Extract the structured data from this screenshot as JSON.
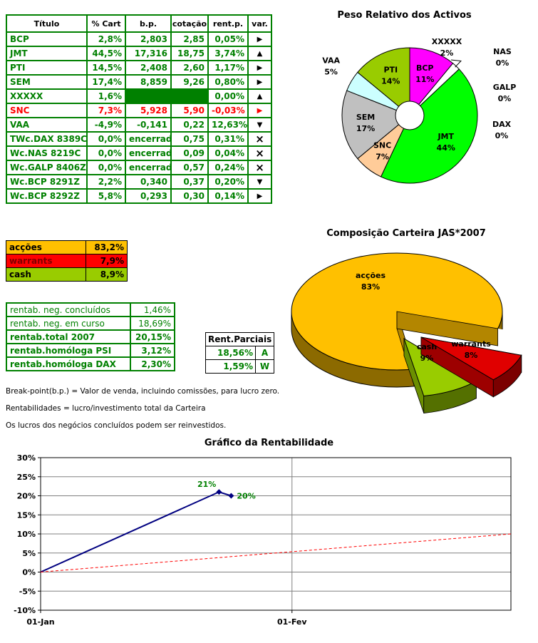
{
  "portfolio_table": {
    "headers": [
      "Título",
      "% Cart",
      "b.p.",
      "cotação",
      "rent.p.",
      "var."
    ],
    "rows": [
      {
        "titulo": "BCP",
        "cart": "2,8%",
        "bp": "2,803",
        "cot": "2,85",
        "rentp": "0,05%",
        "var": "right",
        "tone": "green"
      },
      {
        "titulo": "JMT",
        "cart": "44,5%",
        "bp": "17,316",
        "cot": "18,75",
        "rentp": "3,74%",
        "var": "up",
        "tone": "green"
      },
      {
        "titulo": "PTI",
        "cart": "14,5%",
        "bp": "2,408",
        "cot": "2,60",
        "rentp": "1,17%",
        "var": "right",
        "tone": "green"
      },
      {
        "titulo": "SEM",
        "cart": "17,4%",
        "bp": "8,859",
        "cot": "9,26",
        "rentp": "0,80%",
        "var": "right",
        "tone": "green"
      },
      {
        "titulo": "XXXXX",
        "cart": "1,6%",
        "bp": "",
        "cot": "",
        "rentp": "0,00%",
        "var": "up",
        "tone": "green",
        "filled": true
      },
      {
        "titulo": "SNC",
        "cart": "7,3%",
        "bp": "5,928",
        "cot": "5,90",
        "rentp": "-0,03%",
        "var": "right",
        "tone": "red"
      },
      {
        "titulo": "VAA",
        "cart": "-4,9%",
        "bp": "-0,141",
        "cot": "0,22",
        "rentp": "12,63%",
        "var": "down",
        "tone": "green"
      },
      {
        "titulo": "TWc.DAX 8389C",
        "cart": "0,0%",
        "bp": "encerrado",
        "cot": "0,75",
        "rentp": "0,31%",
        "var": "x",
        "tone": "green"
      },
      {
        "titulo": "Wc.NAS 8219C",
        "cart": "0,0%",
        "bp": "encerrado",
        "cot": "0,09",
        "rentp": "0,04%",
        "var": "x",
        "tone": "green"
      },
      {
        "titulo": "Wc.GALP 8406Z",
        "cart": "0,0%",
        "bp": "encerrado",
        "cot": "0,57",
        "rentp": "0,24%",
        "var": "x",
        "tone": "green"
      },
      {
        "titulo": "Wc.BCP 8291Z",
        "cart": "2,2%",
        "bp": "0,340",
        "cot": "0,37",
        "rentp": "0,20%",
        "var": "down",
        "tone": "green"
      },
      {
        "titulo": "Wc.BCP 8292Z",
        "cart": "5,8%",
        "bp": "0,293",
        "cot": "0,30",
        "rentp": "0,14%",
        "var": "right",
        "tone": "green"
      }
    ]
  },
  "allocation": {
    "rows": [
      {
        "label": "acções",
        "value": "83,2%",
        "bg": "#FFC000",
        "label_color": "#000000"
      },
      {
        "label": "warrants",
        "value": "7,9%",
        "bg": "#FF0000",
        "label_color": "#800000"
      },
      {
        "label": "cash",
        "value": "8,9%",
        "bg": "#99CC00",
        "label_color": "#000000"
      }
    ]
  },
  "rentab": {
    "rows": [
      {
        "label": "rentab. neg. concluídos",
        "value": "1,46%",
        "bold": false
      },
      {
        "label": "rentab. neg. em curso",
        "value": "18,69%",
        "bold": false
      },
      {
        "label": "rentab.total 2007",
        "value": "20,15%",
        "bold": true
      },
      {
        "label": "rentab.homóloga PSI",
        "value": "3,12%",
        "bold": true
      },
      {
        "label": "rentab.homóloga DAX",
        "value": "2,30%",
        "bold": true
      }
    ]
  },
  "rent_parciais": {
    "title": "Rent.Parciais",
    "rows": [
      {
        "value": "18,56%",
        "tag": "A"
      },
      {
        "value": "1,59%",
        "tag": "W"
      }
    ]
  },
  "notes": [
    "Break-point(b.p.) = Valor de venda, incluindo comissões, para lucro zero.",
    "Rentabilidades = lucro/investimento total da Carteira",
    "Os lucros dos negócios concluídos podem ser reinvestidos."
  ],
  "chart_data": [
    {
      "type": "pie",
      "name": "peso_relativo",
      "title": "Peso Relativo dos Activos",
      "donut": true,
      "legend_position": "none",
      "slices": [
        {
          "label": "BCP",
          "value": 11,
          "color": "#FF00FF"
        },
        {
          "label": "XXXXX",
          "value": 2,
          "color": "#FFFFFF"
        },
        {
          "label": "JMT",
          "value": 44,
          "color": "#00FF00"
        },
        {
          "label": "SNC",
          "value": 7,
          "color": "#FFCC99"
        },
        {
          "label": "SEM",
          "value": 17,
          "color": "#C0C0C0"
        },
        {
          "label": "VAA",
          "value": 5,
          "color": "#CCFFFF"
        },
        {
          "label": "PTI",
          "value": 14,
          "color": "#99CC00"
        },
        {
          "label": "NAS",
          "value": 0,
          "color": "#FFFFFF"
        },
        {
          "label": "GALP",
          "value": 0,
          "color": "#FFFFFF"
        },
        {
          "label": "DAX",
          "value": 0,
          "color": "#FFFFFF"
        }
      ]
    },
    {
      "type": "pie",
      "name": "composicao",
      "title": "Composição Carteira JAS*2007",
      "style": "3d-exploded",
      "slices": [
        {
          "label": "acções",
          "value": 83,
          "color": "#FFC000"
        },
        {
          "label": "cash",
          "value": 9,
          "color": "#99CC00"
        },
        {
          "label": "warrants",
          "value": 8,
          "color": "#E00000"
        }
      ]
    },
    {
      "type": "line",
      "name": "rentabilidade",
      "title": "Gráfico da Rentabilidade",
      "ylim": [
        -10,
        30
      ],
      "yticks": [
        "30%",
        "25%",
        "20%",
        "15%",
        "10%",
        "5%",
        "0%",
        "-5%",
        "-10%"
      ],
      "xlim": [
        0,
        58
      ],
      "xticks": [
        {
          "label": "01-Jan",
          "day": 0
        },
        {
          "label": "01-Fev",
          "day": 31
        }
      ],
      "grid": true,
      "series": [
        {
          "name": "carteira",
          "color": "#000080",
          "x": [
            0,
            22,
            23.5
          ],
          "y": [
            0,
            21,
            20
          ],
          "markers": true,
          "point_labels": [
            null,
            "21%",
            "20%"
          ],
          "label_color": "#008000"
        },
        {
          "name": "referencia",
          "color": "#FF0000",
          "dashed": true,
          "x": [
            0,
            58
          ],
          "y": [
            0,
            10
          ]
        }
      ]
    }
  ]
}
